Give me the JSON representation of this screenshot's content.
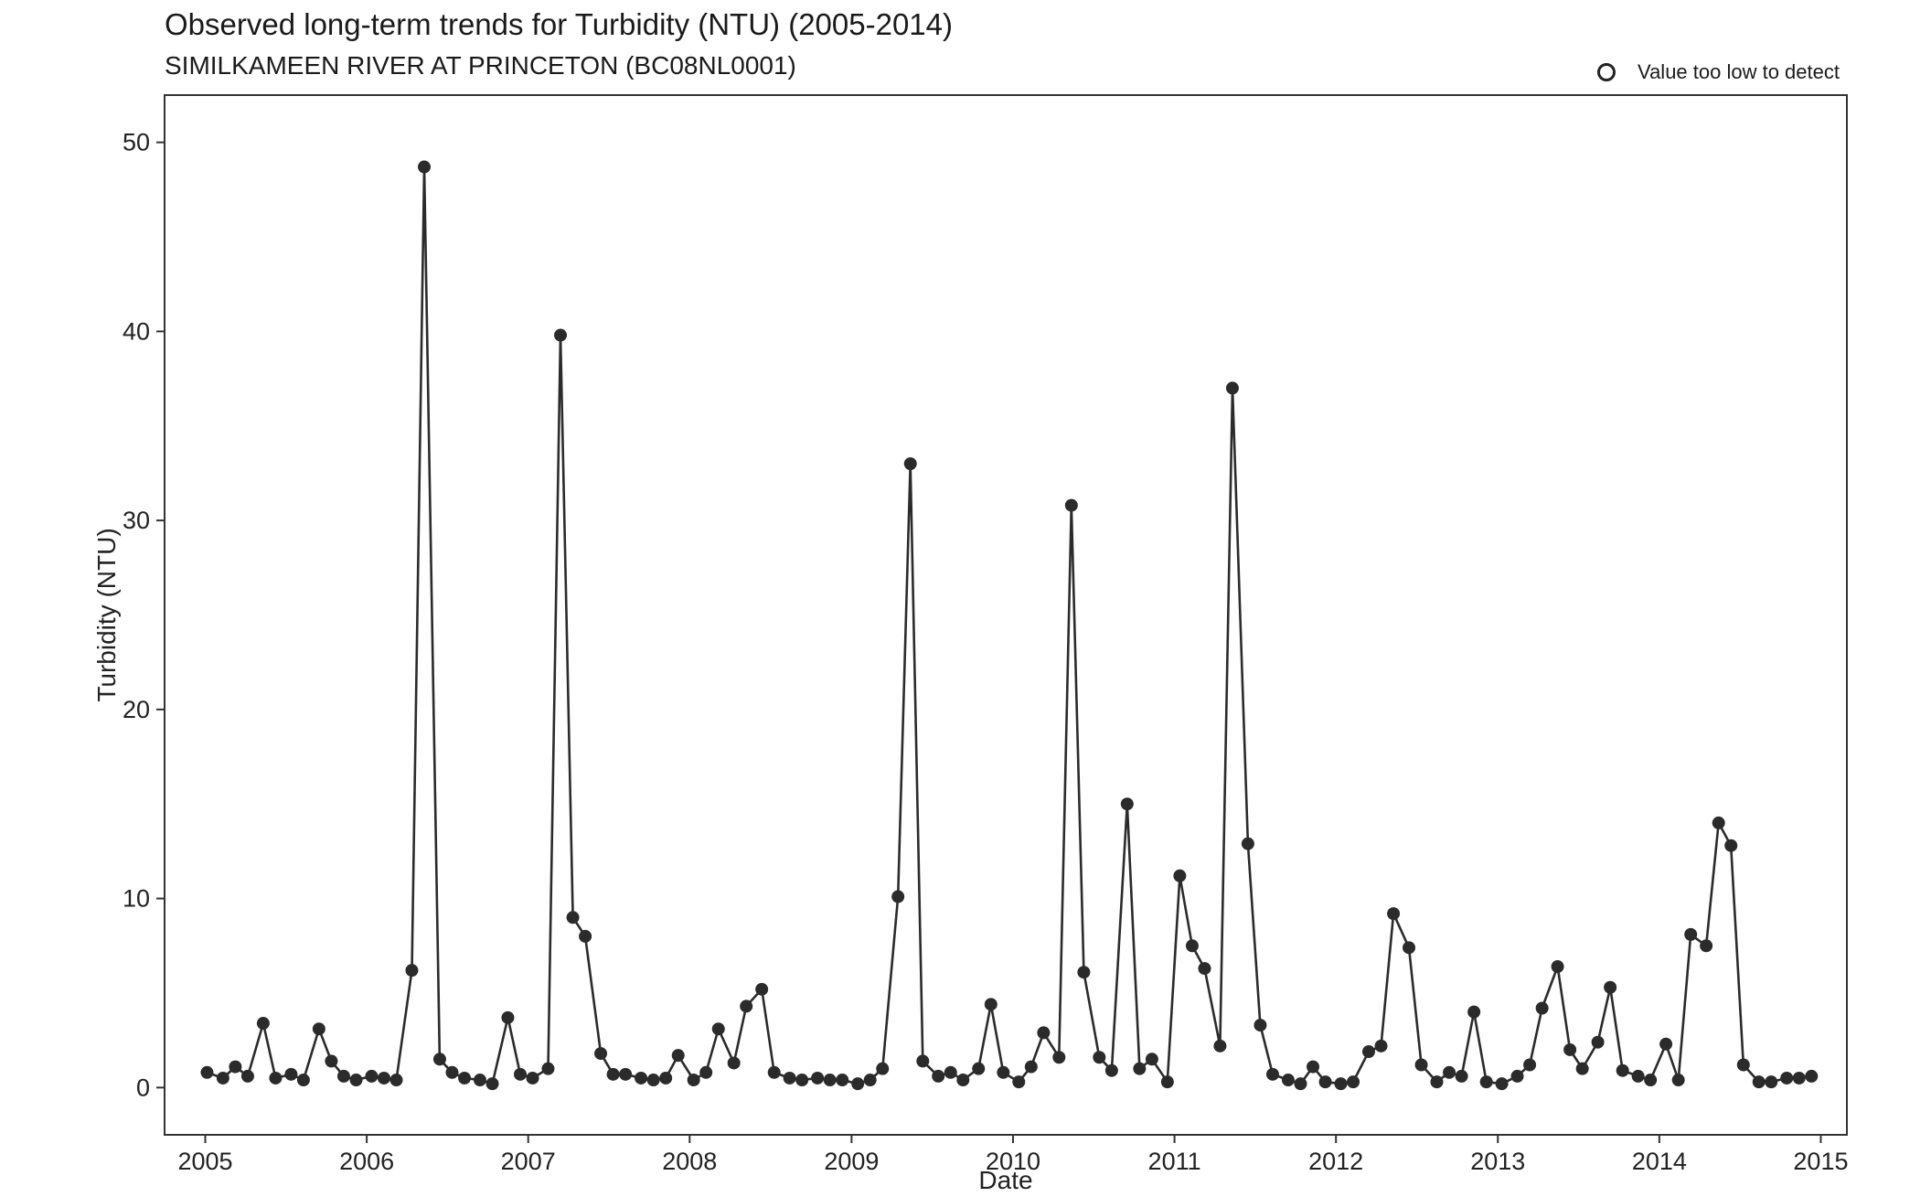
{
  "title": "Observed long-term trends for Turbidity (NTU) (2005-2014)",
  "subtitle": "SIMILKAMEEN RIVER AT PRINCETON (BC08NL0001)",
  "legend_label": "Value too low to detect",
  "chart_data": {
    "type": "scatter",
    "title": "Observed long-term trends for Turbidity (NTU) (2005-2014)",
    "subtitle": "SIMILKAMEEN RIVER AT PRINCETON (BC08NL0001)",
    "xlabel": "Date",
    "ylabel": "Turbidity (NTU)",
    "xlim": [
      "2004-10-01",
      "2015-03-01"
    ],
    "ylim": [
      -2.5,
      52.5
    ],
    "x_ticks": [
      "2005",
      "2006",
      "2007",
      "2008",
      "2009",
      "2010",
      "2011",
      "2012",
      "2013",
      "2014",
      "2015"
    ],
    "y_ticks": [
      0,
      10,
      20,
      30,
      40,
      50
    ],
    "grid": false,
    "legend": "top-right",
    "legend_entries": [
      "Value too low to detect"
    ],
    "colors": {
      "line": "#2b2b2b",
      "points": "#2b2b2b",
      "axis": "#333333"
    },
    "series": [
      {
        "x": [
          "2005-01-05",
          "2005-02-10",
          "2005-03-10",
          "2005-04-07",
          "2005-05-12",
          "2005-06-09",
          "2005-07-14",
          "2005-08-11",
          "2005-09-15",
          "2005-10-13",
          "2005-11-10",
          "2005-12-08",
          "2006-01-12",
          "2006-02-09",
          "2006-03-09",
          "2006-04-13",
          "2006-05-11",
          "2006-06-15",
          "2006-07-13",
          "2006-08-10",
          "2006-09-14",
          "2006-10-12",
          "2006-11-16",
          "2006-12-14",
          "2007-01-11",
          "2007-02-15",
          "2007-03-15",
          "2007-04-12",
          "2007-05-10",
          "2007-06-14",
          "2007-07-12",
          "2007-08-09",
          "2007-09-13",
          "2007-10-11",
          "2007-11-08",
          "2007-12-06",
          "2008-01-10",
          "2008-02-07",
          "2008-03-06",
          "2008-04-10",
          "2008-05-08",
          "2008-06-12",
          "2008-07-10",
          "2008-08-14",
          "2008-09-11",
          "2008-10-16",
          "2008-11-13",
          "2008-12-11",
          "2009-01-15",
          "2009-02-12",
          "2009-03-12",
          "2009-04-16",
          "2009-05-14",
          "2009-06-11",
          "2009-07-16",
          "2009-08-13",
          "2009-09-10",
          "2009-10-15",
          "2009-11-12",
          "2009-12-10",
          "2010-01-14",
          "2010-02-11",
          "2010-03-11",
          "2010-04-15",
          "2010-05-13",
          "2010-06-10",
          "2010-07-15",
          "2010-08-12",
          "2010-09-16",
          "2010-10-14",
          "2010-11-11",
          "2010-12-16",
          "2011-01-13",
          "2011-02-10",
          "2011-03-10",
          "2011-04-14",
          "2011-05-12",
          "2011-06-16",
          "2011-07-14",
          "2011-08-11",
          "2011-09-15",
          "2011-10-13",
          "2011-11-10",
          "2011-12-08",
          "2012-01-12",
          "2012-02-09",
          "2012-03-15",
          "2012-04-12",
          "2012-05-10",
          "2012-06-14",
          "2012-07-12",
          "2012-08-16",
          "2012-09-13",
          "2012-10-11",
          "2012-11-08",
          "2012-12-06",
          "2013-01-10",
          "2013-02-14",
          "2013-03-14",
          "2013-04-11",
          "2013-05-16",
          "2013-06-13",
          "2013-07-11",
          "2013-08-15",
          "2013-09-12",
          "2013-10-10",
          "2013-11-14",
          "2013-12-12",
          "2014-01-16",
          "2014-02-13",
          "2014-03-13",
          "2014-04-17",
          "2014-05-15",
          "2014-06-12",
          "2014-07-10",
          "2014-08-14",
          "2014-09-11",
          "2014-10-16",
          "2014-11-13",
          "2014-12-11"
        ],
        "y": [
          0.8,
          0.5,
          1.1,
          0.6,
          3.4,
          0.5,
          0.7,
          0.4,
          3.1,
          1.4,
          0.6,
          0.4,
          0.6,
          0.5,
          0.4,
          6.2,
          48.7,
          1.5,
          0.8,
          0.5,
          0.4,
          0.2,
          3.7,
          0.7,
          0.5,
          1.0,
          39.8,
          9.0,
          8.0,
          1.8,
          0.7,
          0.7,
          0.5,
          0.4,
          0.5,
          1.7,
          0.4,
          0.8,
          3.1,
          1.3,
          4.3,
          5.2,
          0.8,
          0.5,
          0.4,
          0.5,
          0.4,
          0.4,
          0.2,
          0.4,
          1.0,
          10.1,
          33.0,
          1.4,
          0.6,
          0.8,
          0.4,
          1.0,
          4.4,
          0.8,
          0.3,
          1.1,
          2.9,
          1.6,
          30.8,
          6.1,
          1.6,
          0.9,
          15.0,
          1.0,
          1.5,
          0.3,
          11.2,
          7.5,
          6.3,
          2.2,
          37.0,
          12.9,
          3.3,
          0.7,
          0.4,
          0.2,
          1.1,
          0.3,
          0.2,
          0.3,
          1.9,
          2.2,
          9.2,
          7.4,
          1.2,
          0.3,
          0.8,
          0.6,
          4.0,
          0.3,
          0.2,
          0.6,
          1.2,
          4.2,
          6.4,
          2.0,
          1.0,
          2.4,
          5.3,
          0.9,
          0.6,
          0.4,
          2.3,
          0.4,
          8.1,
          7.5,
          14.0,
          12.8,
          1.2,
          0.3,
          0.3,
          0.5,
          0.5,
          0.6
        ],
        "below_detection": []
      }
    ]
  }
}
